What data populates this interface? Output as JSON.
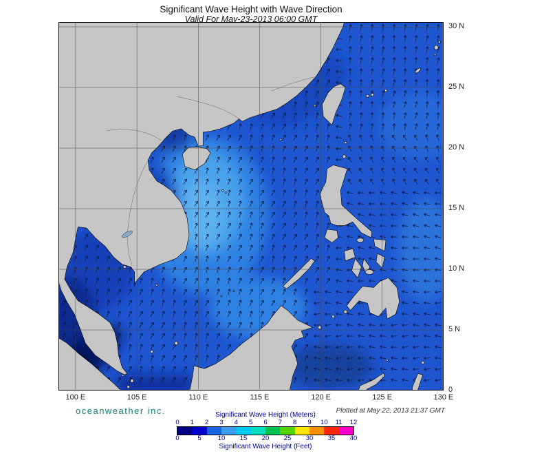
{
  "header": {
    "title": "Significant Wave Height with Wave Direction",
    "subtitle": "Valid For May-23-2013 06:00 GMT"
  },
  "map": {
    "lon_ticks": [
      "100 E",
      "105 E",
      "110 E",
      "115 E",
      "120 E",
      "125 E",
      "130 E"
    ],
    "lat_ticks": [
      "30 N",
      "25 N",
      "20 N",
      "15 N",
      "10 N",
      "5 N",
      "0"
    ]
  },
  "footer": {
    "brand": "oceanweather inc.",
    "plotted": "Plotted at May 22, 2013 21:37 GMT"
  },
  "legend": {
    "meters_title": "Significant Wave Height (Meters)",
    "feet_title": "Significant Wave Height (Feet)",
    "meters_ticks": [
      "0",
      "1",
      "2",
      "3",
      "4",
      "5",
      "6",
      "7",
      "8",
      "9",
      "10",
      "11",
      "12"
    ],
    "feet_ticks": [
      "0",
      "5",
      "10",
      "15",
      "20",
      "25",
      "30",
      "35",
      "40"
    ],
    "colors": [
      "#000080",
      "#0000cc",
      "#1a66e0",
      "#3d9df0",
      "#00c8f5",
      "#00e0c0",
      "#00c050",
      "#55d400",
      "#ffe400",
      "#ff9000",
      "#ff2800",
      "#ff00c8"
    ]
  },
  "wave_field": {
    "regions": [
      {
        "name": "south-china-sea",
        "bearing_deg": 22
      },
      {
        "name": "pacific-north",
        "bearing_deg": 8
      },
      {
        "name": "pacific-transition",
        "bearing_deg": 335
      },
      {
        "name": "pacific-east",
        "bearing_deg": 278
      },
      {
        "name": "sulu-celebes",
        "bearing_deg": 272
      }
    ]
  },
  "map_colors": {
    "land": "#c6c6c6",
    "ocean_base": "#1e56d0",
    "ocean_darkest": "#02093c"
  }
}
